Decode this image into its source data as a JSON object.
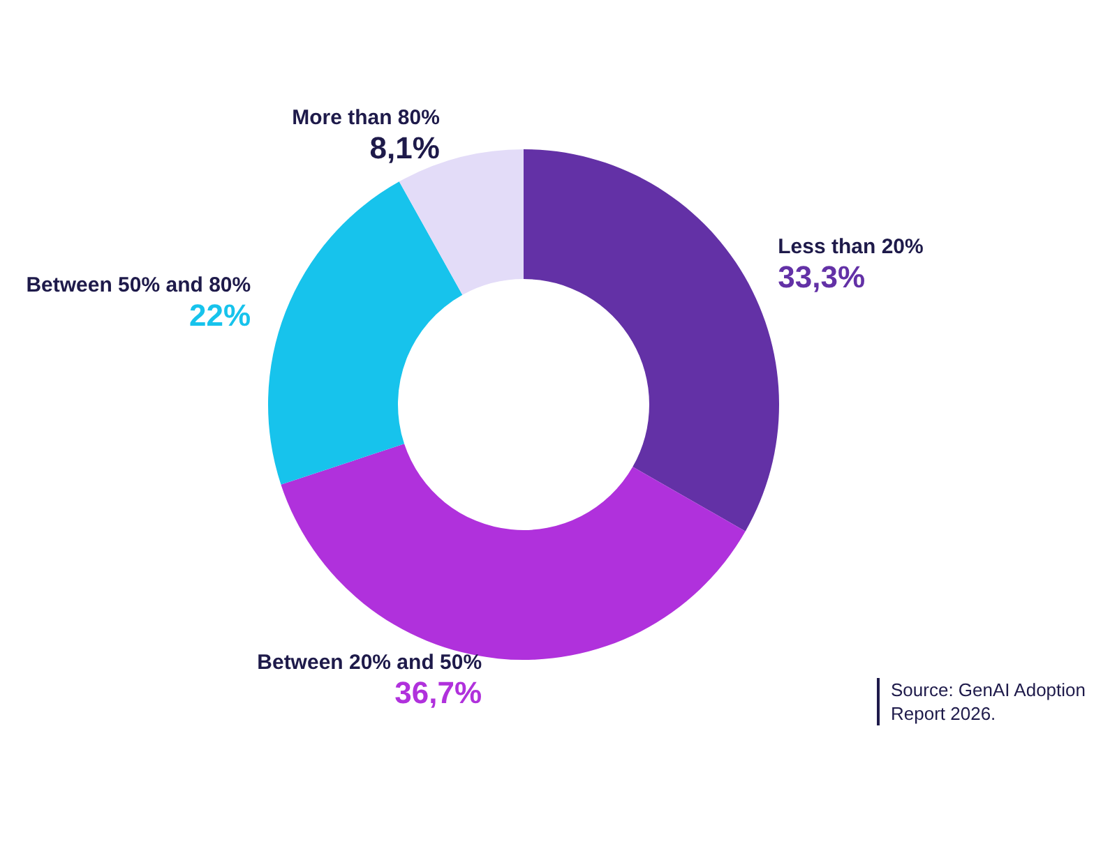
{
  "chart_data": {
    "type": "donut",
    "categories": [
      "Less than 20%",
      "Between 20% and 50%",
      "Between 50% and 80%",
      "More than 80%"
    ],
    "values": [
      33.3,
      36.7,
      22,
      8.1
    ],
    "value_labels": [
      "33,3%",
      "36,7%",
      "22%",
      "8,1%"
    ],
    "colors": [
      "#6331a6",
      "#b031dc",
      "#17c3ec",
      "#e3dcf8"
    ],
    "legend": false,
    "annotations": [
      "Source: GenAI Adoption Report 2026."
    ]
  }
}
